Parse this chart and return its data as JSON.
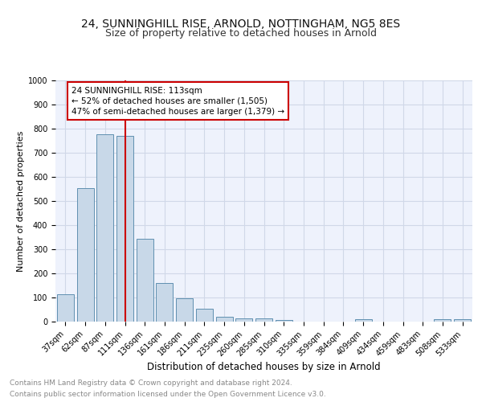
{
  "title": "24, SUNNINGHILL RISE, ARNOLD, NOTTINGHAM, NG5 8ES",
  "subtitle": "Size of property relative to detached houses in Arnold",
  "xlabel": "Distribution of detached houses by size in Arnold",
  "ylabel": "Number of detached properties",
  "categories": [
    "37sqm",
    "62sqm",
    "87sqm",
    "111sqm",
    "136sqm",
    "161sqm",
    "186sqm",
    "211sqm",
    "235sqm",
    "260sqm",
    "285sqm",
    "310sqm",
    "335sqm",
    "359sqm",
    "384sqm",
    "409sqm",
    "434sqm",
    "459sqm",
    "483sqm",
    "508sqm",
    "533sqm"
  ],
  "values": [
    113,
    555,
    778,
    770,
    344,
    160,
    97,
    55,
    20,
    13,
    13,
    8,
    0,
    0,
    0,
    10,
    0,
    0,
    0,
    10,
    10
  ],
  "bar_color": "#c8d8e8",
  "bar_edge_color": "#6090b0",
  "grid_color": "#d0d8e8",
  "background_color": "#eef2fc",
  "property_line_color": "#cc0000",
  "property_label": "24 SUNNINGHILL RISE: 113sqm",
  "annotation_line1": "← 52% of detached houses are smaller (1,505)",
  "annotation_line2": "47% of semi-detached houses are larger (1,379) →",
  "annotation_box_color": "#ffffff",
  "annotation_box_edge": "#cc0000",
  "footer_line1": "Contains HM Land Registry data © Crown copyright and database right 2024.",
  "footer_line2": "Contains public sector information licensed under the Open Government Licence v3.0.",
  "ylim": [
    0,
    1000
  ],
  "yticks": [
    0,
    100,
    200,
    300,
    400,
    500,
    600,
    700,
    800,
    900,
    1000
  ],
  "title_fontsize": 10,
  "subtitle_fontsize": 9,
  "xlabel_fontsize": 8.5,
  "ylabel_fontsize": 8,
  "tick_fontsize": 7,
  "footer_fontsize": 6.5,
  "annotation_fontsize": 7.5
}
